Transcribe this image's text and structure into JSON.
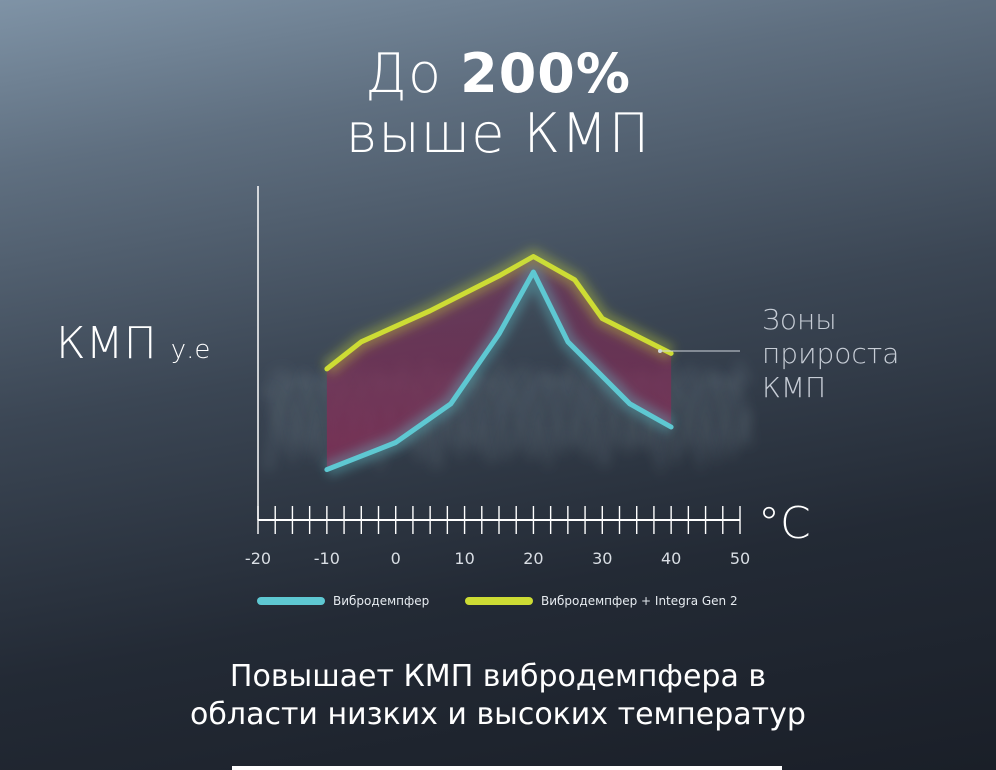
{
  "headline": {
    "prefix": "До ",
    "emphasis": "200%",
    "line2": "выше КМП"
  },
  "annotation": {
    "zones_line1": "Зоны",
    "zones_line2": "прироста",
    "zones_line3": "КМП"
  },
  "subtitle": {
    "line1": "Повышает КМП вибродемпфера в",
    "line2": "области низких и высоких температур"
  },
  "colors": {
    "series_base": "#5ec8d2",
    "series_integra": "#cddc34",
    "gain_zone": "#8a2a55"
  },
  "chart_data": {
    "type": "line",
    "title": "",
    "xlabel": "°C",
    "ylabel": "КМП у.е",
    "xlim": [
      -20,
      50
    ],
    "x_ticks": [
      -20,
      -10,
      0,
      10,
      20,
      30,
      40,
      50
    ],
    "grid": false,
    "legend_position": "bottom",
    "series": [
      {
        "name": "Вибродемпфер",
        "color": "#5ec8d2",
        "x": [
          -10,
          0,
          8,
          15,
          20,
          25,
          34,
          40
        ],
        "y": [
          1.3,
          2.0,
          3.0,
          4.8,
          6.4,
          4.6,
          3.0,
          2.4
        ]
      },
      {
        "name": "Вибродемпфер + Integra Gen 2",
        "color": "#cddc34",
        "x": [
          -10,
          -5,
          5,
          15,
          20,
          26,
          30,
          40
        ],
        "y": [
          3.9,
          4.6,
          5.4,
          6.3,
          6.8,
          6.2,
          5.2,
          4.3
        ]
      }
    ]
  }
}
